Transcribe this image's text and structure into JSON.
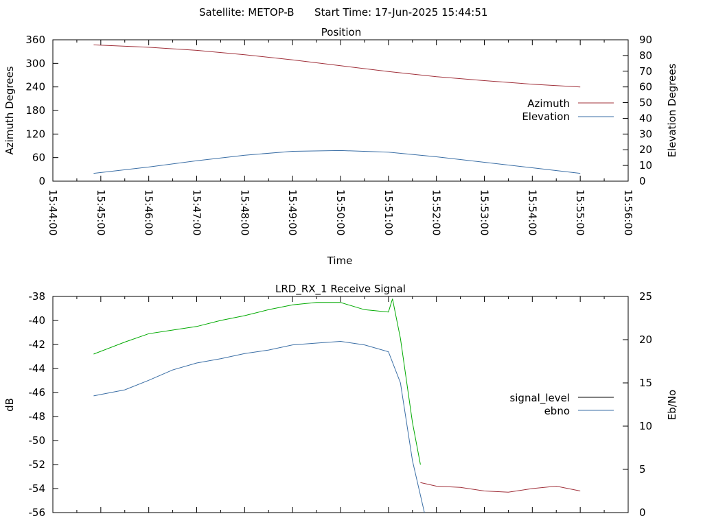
{
  "header": {
    "satellite": "Satellite: METOP-B",
    "start_time": "Start Time: 17-Jun-2025 15:44:51"
  },
  "chart_data": [
    {
      "type": "line",
      "title": "Position",
      "xlabel": "Time",
      "ylabel": "Azimuth Degrees",
      "y2label": "Elevation Degrees",
      "xlim": [
        "15:44:00",
        "15:56:00"
      ],
      "ylim": [
        0,
        360
      ],
      "y2lim": [
        0,
        90
      ],
      "x_ticks": [
        "15:44:00",
        "15:45:00",
        "15:46:00",
        "15:47:00",
        "15:48:00",
        "15:49:00",
        "15:50:00",
        "15:51:00",
        "15:52:00",
        "15:53:00",
        "15:54:00",
        "15:55:00",
        "15:56:00"
      ],
      "y_ticks": [
        0,
        60,
        120,
        180,
        240,
        300,
        360
      ],
      "y2_ticks": [
        0,
        10,
        20,
        30,
        40,
        50,
        60,
        70,
        80,
        90
      ],
      "legend_position": "right",
      "grid": false,
      "series": [
        {
          "name": "Azimuth",
          "axis": "y",
          "color": "#a0303a",
          "x": [
            "15:44:51",
            "15:46:00",
            "15:47:00",
            "15:48:00",
            "15:49:00",
            "15:50:00",
            "15:51:00",
            "15:52:00",
            "15:53:00",
            "15:54:00",
            "15:55:00"
          ],
          "values": [
            347,
            341,
            333,
            322,
            309,
            294,
            279,
            266,
            256,
            247,
            240
          ]
        },
        {
          "name": "Elevation",
          "axis": "y2",
          "color": "#3a6ea5",
          "x": [
            "15:44:51",
            "15:46:00",
            "15:47:00",
            "15:48:00",
            "15:49:00",
            "15:50:00",
            "15:51:00",
            "15:52:00",
            "15:53:00",
            "15:54:00",
            "15:55:00"
          ],
          "values": [
            5,
            9,
            13,
            16.5,
            19,
            19.5,
            18.5,
            15.5,
            12,
            8.5,
            5
          ]
        }
      ]
    },
    {
      "type": "line",
      "title": "LRD_RX_1 Receive Signal",
      "ylabel": "dB",
      "y2label": "Eb/No",
      "xlim": [
        "15:44:00",
        "15:56:00"
      ],
      "ylim": [
        -56,
        -38
      ],
      "y2lim": [
        0,
        25
      ],
      "y_ticks": [
        -56,
        -54,
        -52,
        -50,
        -48,
        -46,
        -44,
        -42,
        -40,
        -38
      ],
      "y2_ticks": [
        0,
        5,
        10,
        15,
        20,
        25
      ],
      "legend_position": "right",
      "grid": false,
      "series": [
        {
          "name": "signal_level",
          "axis": "y",
          "color": "#000000",
          "x": [],
          "values": []
        },
        {
          "name": "ebno",
          "axis": "y2",
          "color": "#3a6ea5",
          "x": [
            "15:44:51",
            "15:45:30",
            "15:46:00",
            "15:46:30",
            "15:47:00",
            "15:47:30",
            "15:48:00",
            "15:48:30",
            "15:49:00",
            "15:49:30",
            "15:50:00",
            "15:50:30",
            "15:51:00",
            "15:51:15",
            "15:51:30",
            "15:51:45"
          ],
          "values": [
            13.5,
            14.2,
            15.3,
            16.5,
            17.3,
            17.8,
            18.4,
            18.8,
            19.4,
            19.6,
            19.8,
            19.4,
            18.6,
            15,
            6,
            0
          ]
        },
        {
          "name": "",
          "axis": "y",
          "color": "#00aa00",
          "x": [
            "15:44:51",
            "15:45:30",
            "15:46:00",
            "15:46:30",
            "15:47:00",
            "15:47:30",
            "15:48:00",
            "15:48:30",
            "15:49:00",
            "15:49:30",
            "15:50:00",
            "15:50:30",
            "15:51:00",
            "15:51:05",
            "15:51:15",
            "15:51:30",
            "15:51:40"
          ],
          "values": [
            -42.8,
            -41.8,
            -41.1,
            -40.8,
            -40.5,
            -40.0,
            -39.6,
            -39.1,
            -38.7,
            -38.5,
            -38.5,
            -39.1,
            -39.3,
            -38.2,
            -41.5,
            -48.5,
            -52
          ]
        },
        {
          "name": "",
          "axis": "y",
          "color": "#a0303a",
          "x": [
            "15:51:40",
            "15:52:00",
            "15:52:30",
            "15:53:00",
            "15:53:30",
            "15:54:00",
            "15:54:30",
            "15:55:00"
          ],
          "values": [
            -53.5,
            -53.8,
            -53.9,
            -54.2,
            -54.3,
            -54.0,
            -53.8,
            -54.2
          ]
        }
      ]
    }
  ]
}
